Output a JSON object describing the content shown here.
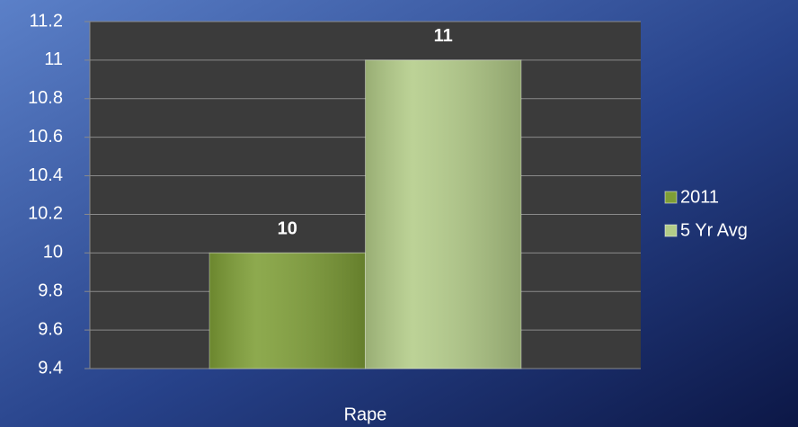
{
  "chart_data": {
    "type": "bar",
    "categories": [
      "Rape"
    ],
    "series": [
      {
        "name": "2011",
        "color": "#7e9e36",
        "values": [
          10
        ]
      },
      {
        "name": "5 Yr Avg",
        "color": "#b3cc88",
        "values": [
          11
        ]
      }
    ],
    "ylim": [
      9.4,
      11.2
    ],
    "yticks": [
      9.4,
      9.6,
      9.8,
      10,
      10.2,
      10.4,
      10.6,
      10.8,
      11,
      11.2
    ],
    "grid": true,
    "legend": "right"
  }
}
